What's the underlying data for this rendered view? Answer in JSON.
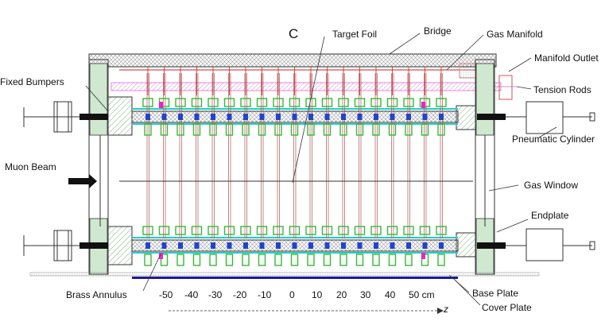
{
  "title_letter": "C",
  "labels": {
    "target_foil": "Target Foil",
    "bridge": "Bridge",
    "gas_manifold": "Gas Manifold",
    "manifold_outlet": "Manifold Outlet",
    "fixed_bumpers": "Fixed Bumpers",
    "tension_rods": "Tension Rods",
    "pneumatic_cylinder": "Pneumatic Cylinder",
    "muon_beam": "Muon Beam",
    "gas_window": "Gas Window",
    "endplate": "Endplate",
    "brass_annulus": "Brass Annulus",
    "base_plate": "Base Plate",
    "cover_plate": "Cover Plate"
  },
  "axis": {
    "ticks": [
      "-50",
      "-40",
      "-30",
      "-20",
      "-10",
      "0",
      "10",
      "20",
      "30",
      "40",
      "50 cm"
    ],
    "axis_name": "z"
  },
  "colors": {
    "line": "#333333",
    "hatch": "#999999",
    "green": "#33bb33",
    "blue": "#2244cc",
    "cyan": "#22cccc",
    "magenta": "#ee22cc",
    "red": "#cc2222",
    "pink": "#dd88dd",
    "navy": "#1a1aa0",
    "endplate_green": "#cfe8cf",
    "dark_blue": "#101080"
  }
}
